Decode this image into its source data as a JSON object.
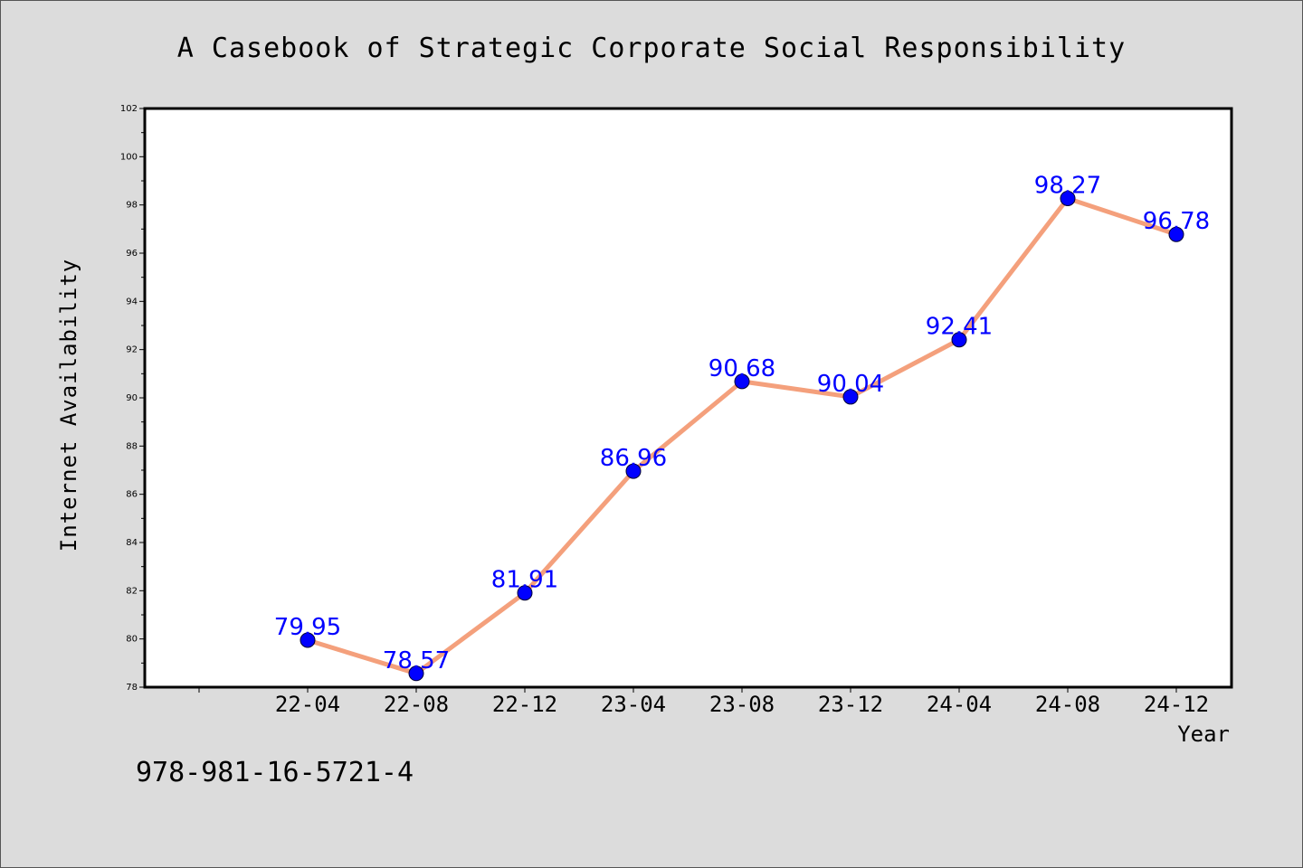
{
  "chart_data": {
    "type": "line",
    "title": "A Casebook of Strategic Corporate Social Responsibility",
    "xlabel": "Year",
    "ylabel": "Internet Availability",
    "categories": [
      "22-04",
      "22-08",
      "22-12",
      "23-04",
      "23-08",
      "23-12",
      "24-04",
      "24-08",
      "24-12"
    ],
    "series": [
      {
        "values": [
          79.95,
          78.57,
          81.91,
          86.96,
          90.68,
          90.04,
          92.41,
          98.27,
          96.78
        ],
        "line_color": "#f4a07c",
        "marker_color": "#0000ff"
      }
    ],
    "ylim": [
      78,
      102
    ],
    "yticks": [
      "78",
      "80",
      "82",
      "84",
      "86",
      "88",
      "90",
      "92",
      "94",
      "96",
      "98",
      "100",
      "102"
    ],
    "grid": false,
    "legend": "none",
    "footer": "978-981-16-5721-4"
  }
}
